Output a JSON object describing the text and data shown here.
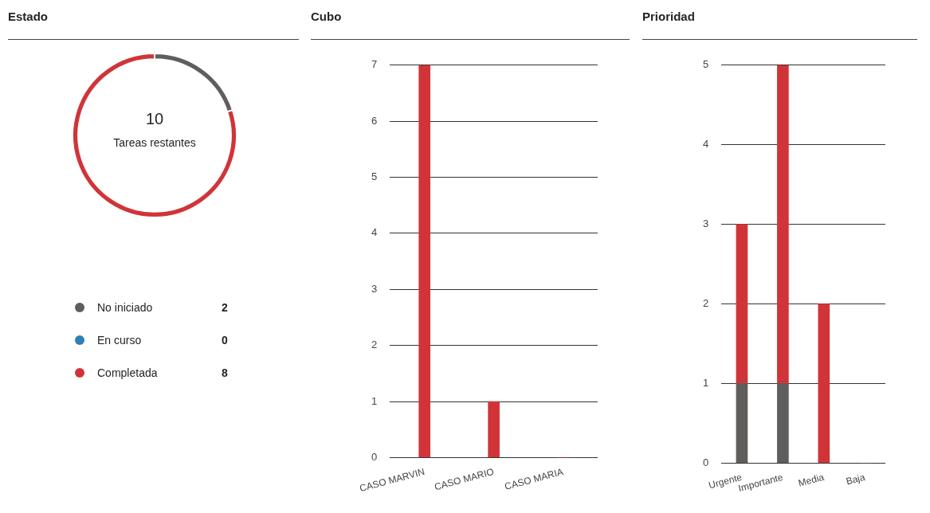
{
  "chart_data": [
    {
      "type": "donut",
      "title": "Estado",
      "categories": [
        "No iniciado",
        "En curso",
        "Completada"
      ],
      "values": [
        2,
        0,
        8
      ],
      "colors": [
        "#605e5c",
        "#2d7fb5",
        "#d13438"
      ],
      "annotations": [
        "10",
        "Tareas restantes"
      ],
      "legend": "bottom",
      "value_labels": [
        "2",
        "0",
        "8"
      ]
    },
    {
      "type": "bar",
      "title": "Cubo",
      "categories": [
        "CASO MARVIN",
        "CASO MARIO",
        "CASO MARIA"
      ],
      "values": [
        7,
        1,
        0
      ],
      "color": "#d13438",
      "ylim": [
        0,
        7
      ],
      "yticks": [
        0,
        1,
        2,
        3,
        4,
        5,
        6,
        7
      ],
      "grid": "y"
    },
    {
      "type": "bar",
      "title": "Prioridad",
      "categories": [
        "Urgente",
        "Importante",
        "Media",
        "Baja"
      ],
      "stacked": true,
      "series": [
        {
          "color": "#605e5c",
          "values": [
            1,
            1,
            0,
            0
          ]
        },
        {
          "color": "#d13438",
          "values": [
            2,
            4,
            2,
            0
          ]
        }
      ],
      "ylim": [
        0,
        5
      ],
      "yticks": [
        0,
        1,
        2,
        3,
        4,
        5
      ],
      "grid": "y"
    }
  ]
}
